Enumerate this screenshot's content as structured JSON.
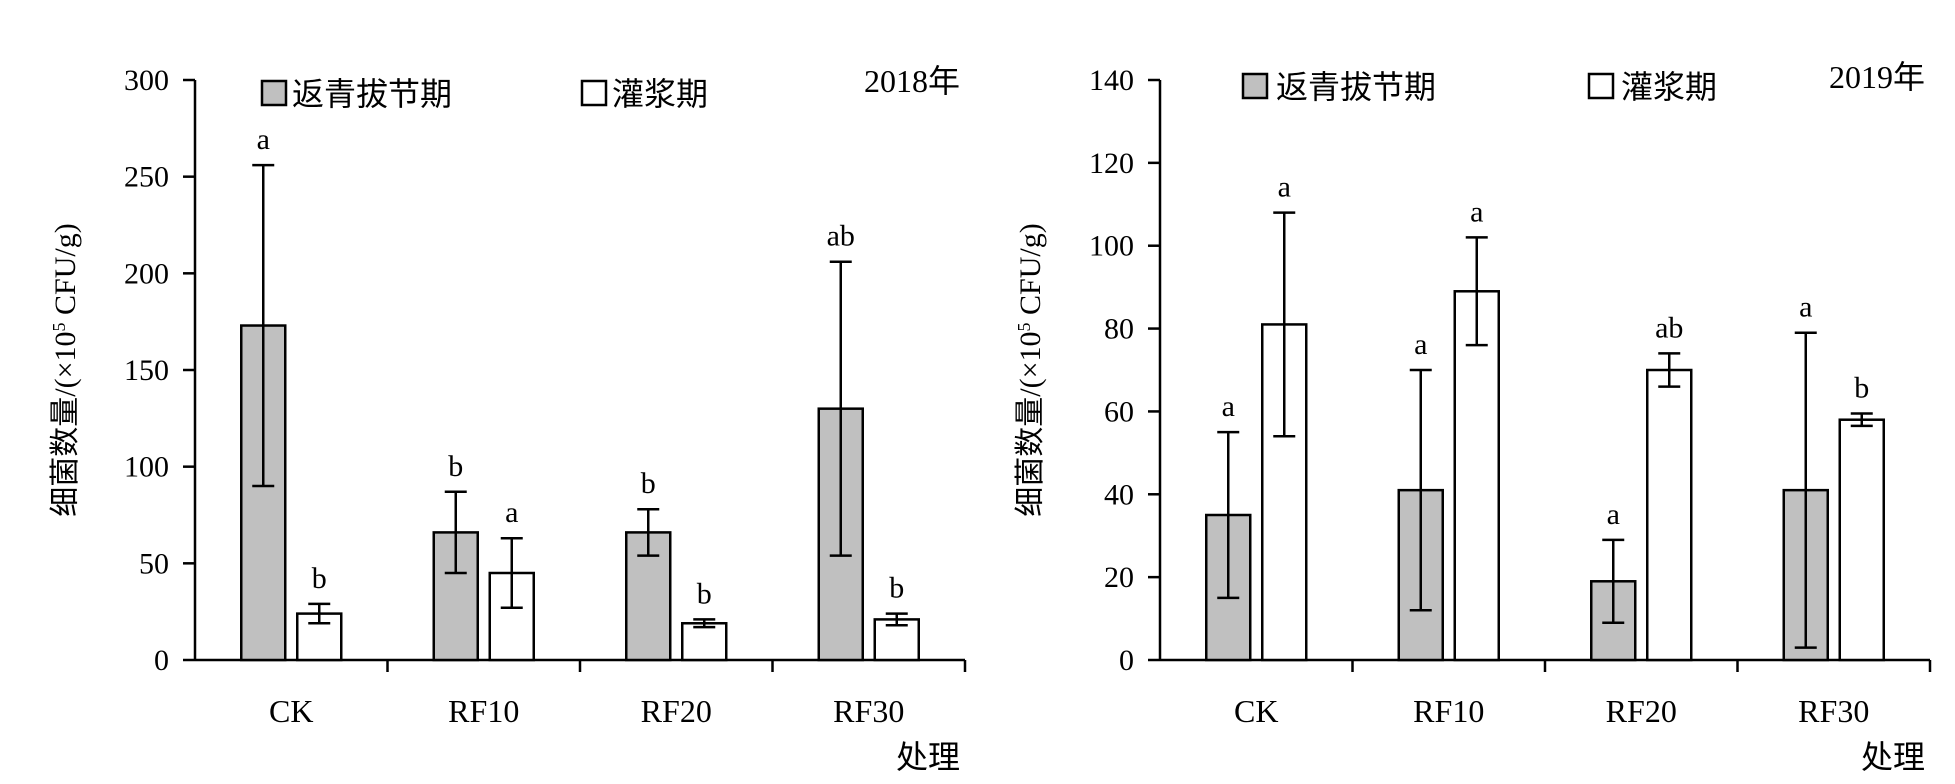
{
  "chart_data": [
    {
      "type": "bar",
      "title": "2018年",
      "xlabel": "处理",
      "ylabel_main": "细菌数量/(×10",
      "ylabel_sup": "5",
      "ylabel_tail": " CFU/g)",
      "ylim": [
        0,
        300
      ],
      "yticks": [
        0,
        50,
        100,
        150,
        200,
        250,
        300
      ],
      "categories": [
        "CK",
        "RF10",
        "RF20",
        "RF30"
      ],
      "legend_position": "top",
      "series": [
        {
          "name": "返青拔节期",
          "color": "#c0c0c0",
          "values": [
            173,
            66,
            66,
            130
          ],
          "errors": [
            83,
            21,
            12,
            76
          ],
          "letters": [
            "a",
            "b",
            "b",
            "ab"
          ]
        },
        {
          "name": "灌浆期",
          "color": "#ffffff",
          "values": [
            24,
            45,
            19,
            21
          ],
          "errors": [
            5,
            18,
            2,
            3
          ],
          "letters": [
            "b",
            "a",
            "b",
            "b"
          ]
        }
      ]
    },
    {
      "type": "bar",
      "title": "2019年",
      "xlabel": "处理",
      "ylabel_main": "细菌数量/(×10",
      "ylabel_sup": "5",
      "ylabel_tail": " CFU/g)",
      "ylim": [
        0,
        140
      ],
      "yticks": [
        0,
        20,
        40,
        60,
        80,
        100,
        120,
        140
      ],
      "categories": [
        "CK",
        "RF10",
        "RF20",
        "RF30"
      ],
      "legend_position": "top",
      "series": [
        {
          "name": "返青拔节期",
          "color": "#c0c0c0",
          "values": [
            35,
            41,
            19,
            41
          ],
          "errors": [
            20,
            29,
            10,
            38
          ],
          "letters": [
            "a",
            "a",
            "a",
            "a"
          ]
        },
        {
          "name": "灌浆期",
          "color": "#ffffff",
          "values": [
            81,
            89,
            70,
            58
          ],
          "errors": [
            27,
            13,
            4,
            1.5
          ],
          "letters": [
            "a",
            "a",
            "ab",
            "b"
          ]
        }
      ]
    }
  ]
}
